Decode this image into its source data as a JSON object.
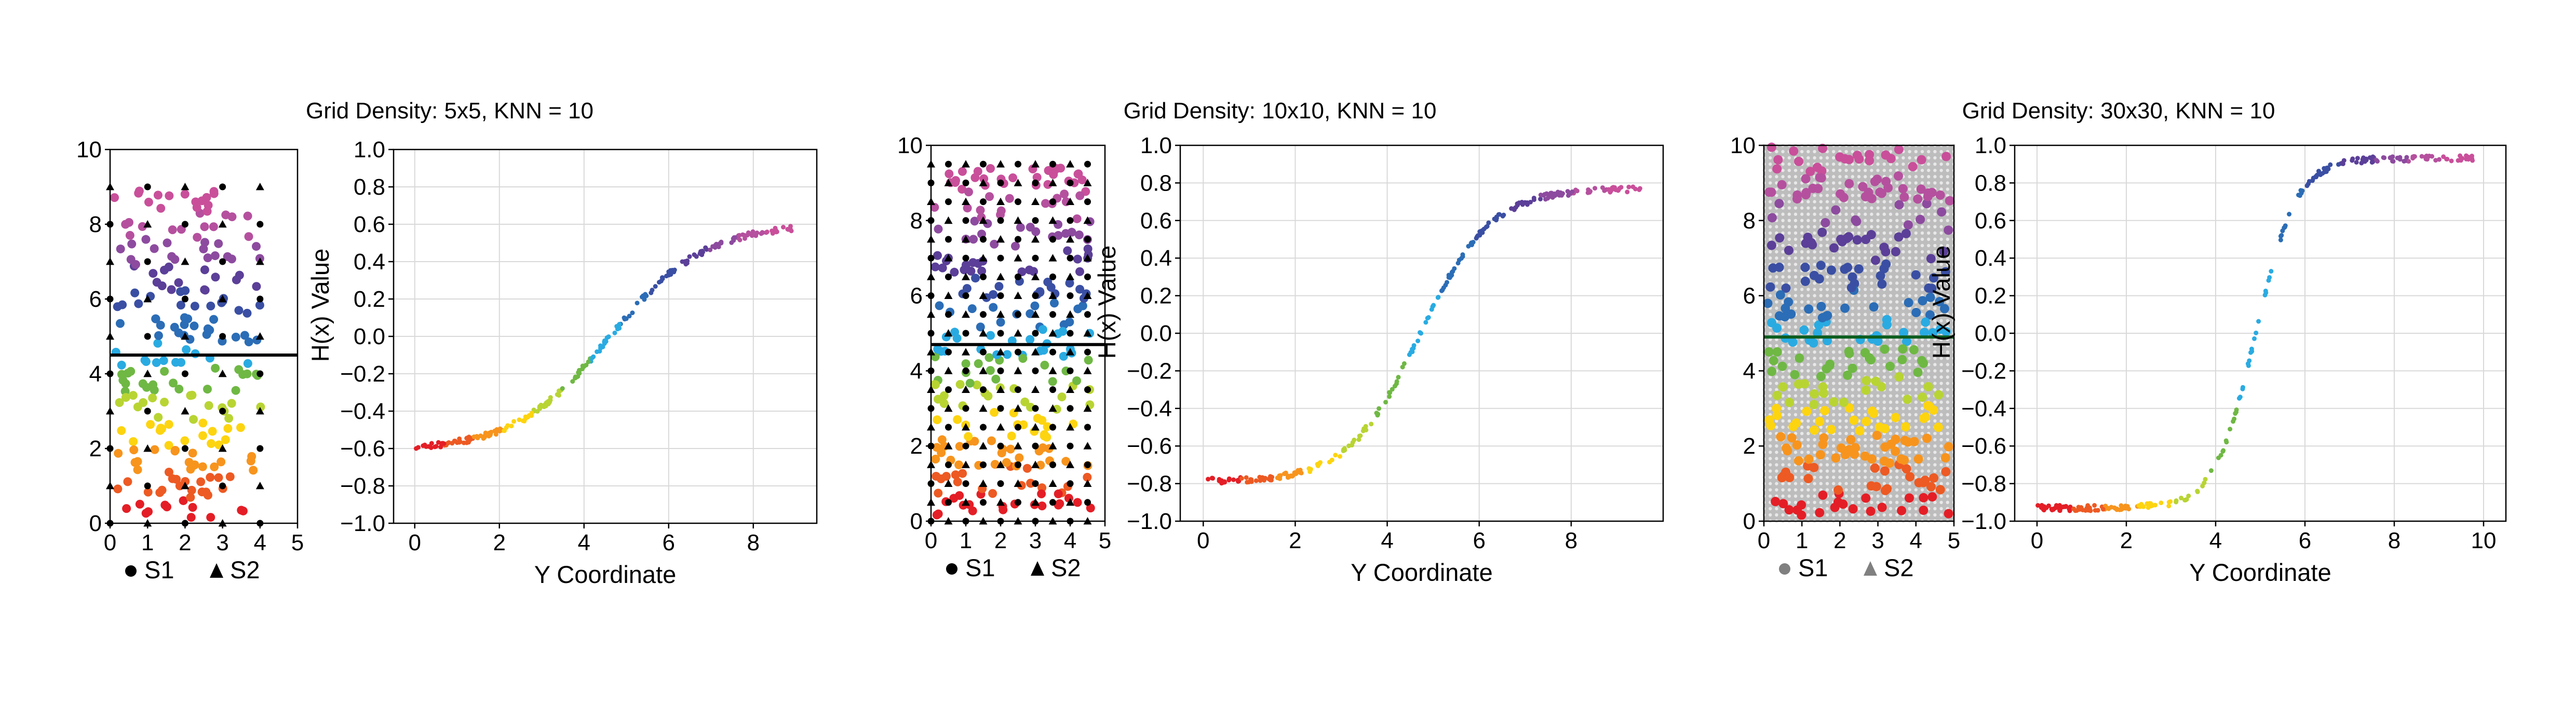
{
  "colors": {
    "gradient": [
      "#e41e26",
      "#ed5a23",
      "#f7941d",
      "#fdd410",
      "#b8d433",
      "#6fb844",
      "#29abe2",
      "#2b6db6",
      "#3a4fa3",
      "#5b3f98",
      "#8d4b9f",
      "#b5509e",
      "#c94f9a"
    ],
    "threshold_line": "#000000",
    "threshold_line_dense": "#0b5d1e",
    "grid": "#d9d9d9",
    "dense_background": "#bdbdbd"
  },
  "chart_data": [
    {
      "type": "scatter",
      "title": "Grid Density: 5x5, KNN = 10",
      "map": {
        "xlim": [
          0,
          5
        ],
        "ylim": [
          0,
          10
        ],
        "xticks": [
          "0",
          "1",
          "2",
          "3",
          "4",
          "5"
        ],
        "yticks": [
          "0",
          "2",
          "4",
          "6",
          "8",
          "10"
        ],
        "threshold_y": 4.5,
        "grid_n": 5,
        "grid_x_max": 4,
        "grid_y_max": 9,
        "s1_count": 220,
        "s2_count": 0,
        "dense_background": false,
        "legend": [
          {
            "marker": "circle",
            "label": "S1",
            "color": "#000000"
          },
          {
            "marker": "triangle",
            "label": "S2",
            "color": "#000000"
          }
        ]
      },
      "curve": {
        "xlabel": "Y Coordinate",
        "ylabel": "H(x) Value",
        "xlim": [
          -0.5,
          9.5
        ],
        "ylim": [
          -1.0,
          1.0
        ],
        "xticks": [
          "0",
          "2",
          "4",
          "6",
          "8"
        ],
        "yticks": [
          "1.0",
          "0.8",
          "0.6",
          "0.4",
          "0.2",
          "0.0",
          "−0.2",
          "−0.4",
          "−0.6",
          "−0.8",
          "−1.0"
        ],
        "series": {
          "x_range": [
            0,
            9
          ],
          "y_min": -0.61,
          "y_max": 0.6,
          "midpoint": 4.6,
          "steepness": 0.9
        }
      }
    },
    {
      "type": "scatter",
      "title": "Grid Density: 10x10, KNN = 10",
      "map": {
        "xlim": [
          0,
          5
        ],
        "ylim": [
          0,
          10
        ],
        "xticks": [
          "0",
          "1",
          "2",
          "3",
          "4",
          "5"
        ],
        "yticks": [
          "0",
          "2",
          "4",
          "6",
          "8",
          "10"
        ],
        "threshold_y": 4.7,
        "grid_n": 10,
        "grid_x_max": 4.5,
        "grid_y_max": 9.5,
        "s1_count": 260,
        "s2_count": 0,
        "dense_background": false,
        "legend": [
          {
            "marker": "circle",
            "label": "S1",
            "color": "#000000"
          },
          {
            "marker": "triangle",
            "label": "S2",
            "color": "#000000"
          }
        ]
      },
      "curve": {
        "xlabel": "Y Coordinate",
        "ylabel": "H(x) Value",
        "xlim": [
          -0.5,
          10
        ],
        "ylim": [
          -1.0,
          1.0
        ],
        "xticks": [
          "0",
          "2",
          "4",
          "6",
          "8"
        ],
        "yticks": [
          "1.0",
          "0.8",
          "0.6",
          "0.4",
          "0.2",
          "0.0",
          "−0.2",
          "−0.4",
          "−0.6",
          "−0.8",
          "−1.0"
        ],
        "series": {
          "x_range": [
            0.1,
            9.5
          ],
          "y_min": -0.79,
          "y_max": 0.77,
          "midpoint": 4.7,
          "steepness": 1.3
        }
      }
    },
    {
      "type": "scatter",
      "title": "Grid Density: 30x30, KNN = 10",
      "map": {
        "xlim": [
          0,
          5
        ],
        "ylim": [
          0,
          10
        ],
        "xticks": [
          "0",
          "1",
          "2",
          "3",
          "4",
          "5"
        ],
        "yticks": [
          "0",
          "2",
          "4",
          "6",
          "8",
          "10"
        ],
        "threshold_y": 4.9,
        "grid_n": 30,
        "grid_x_max": 5,
        "grid_y_max": 10,
        "s1_count": 320,
        "s2_count": 0,
        "dense_background": true,
        "legend": [
          {
            "marker": "circle",
            "label": "S1",
            "color": "#808080"
          },
          {
            "marker": "triangle",
            "label": "S2",
            "color": "#808080"
          }
        ]
      },
      "curve": {
        "xlabel": "Y Coordinate",
        "ylabel": "H(x) Value",
        "xlim": [
          -0.5,
          10.5
        ],
        "ylim": [
          -1.0,
          1.0
        ],
        "xticks": [
          "0",
          "2",
          "4",
          "6",
          "8",
          "10"
        ],
        "yticks": [
          "1.0",
          "0.8",
          "0.6",
          "0.4",
          "0.2",
          "0.0",
          "−0.2",
          "−0.4",
          "−0.6",
          "−0.8",
          "−1.0"
        ],
        "series": {
          "x_range": [
            0,
            9.8
          ],
          "y_min": -0.93,
          "y_max": 0.93,
          "midpoint": 4.9,
          "steepness": 2.2
        }
      }
    }
  ]
}
